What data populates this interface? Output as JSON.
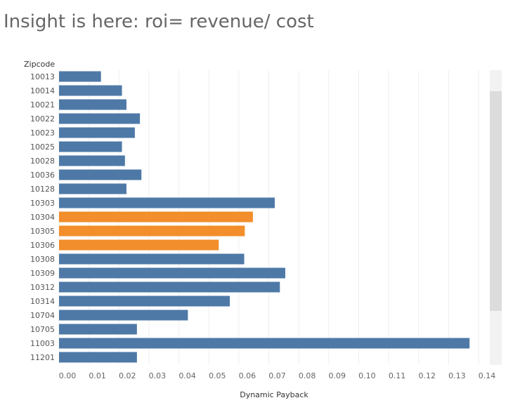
{
  "header": {
    "title": "Insight is here: roi= revenue/ cost"
  },
  "chart_data": {
    "type": "bar",
    "orientation": "horizontal",
    "ylabel": "Zipcode",
    "xlabel": "Dynamic Payback",
    "categories": [
      "10013",
      "10014",
      "10021",
      "10022",
      "10023",
      "10025",
      "10028",
      "10036",
      "10128",
      "10303",
      "10304",
      "10305",
      "10306",
      "10308",
      "10309",
      "10312",
      "10314",
      "10704",
      "10705",
      "11003",
      "11201"
    ],
    "values": [
      0.014,
      0.021,
      0.0225,
      0.027,
      0.0253,
      0.021,
      0.022,
      0.0275,
      0.0225,
      0.072,
      0.0647,
      0.062,
      0.0533,
      0.0618,
      0.0755,
      0.0737,
      0.057,
      0.043,
      0.026,
      0.137,
      0.026
    ],
    "highlighted": [
      "10304",
      "10305",
      "10306"
    ],
    "xlim": [
      0,
      0.14
    ],
    "xticks": [
      "0.00",
      "0.01",
      "0.02",
      "0.03",
      "0.04",
      "0.05",
      "0.06",
      "0.07",
      "0.08",
      "0.09",
      "0.10",
      "0.11",
      "0.12",
      "0.13",
      "0.14"
    ],
    "colors": {
      "default": "#4e79a7",
      "highlight": "#f28e2b",
      "grid": "#eeeeee"
    },
    "grid": true,
    "scrollbar": true
  }
}
